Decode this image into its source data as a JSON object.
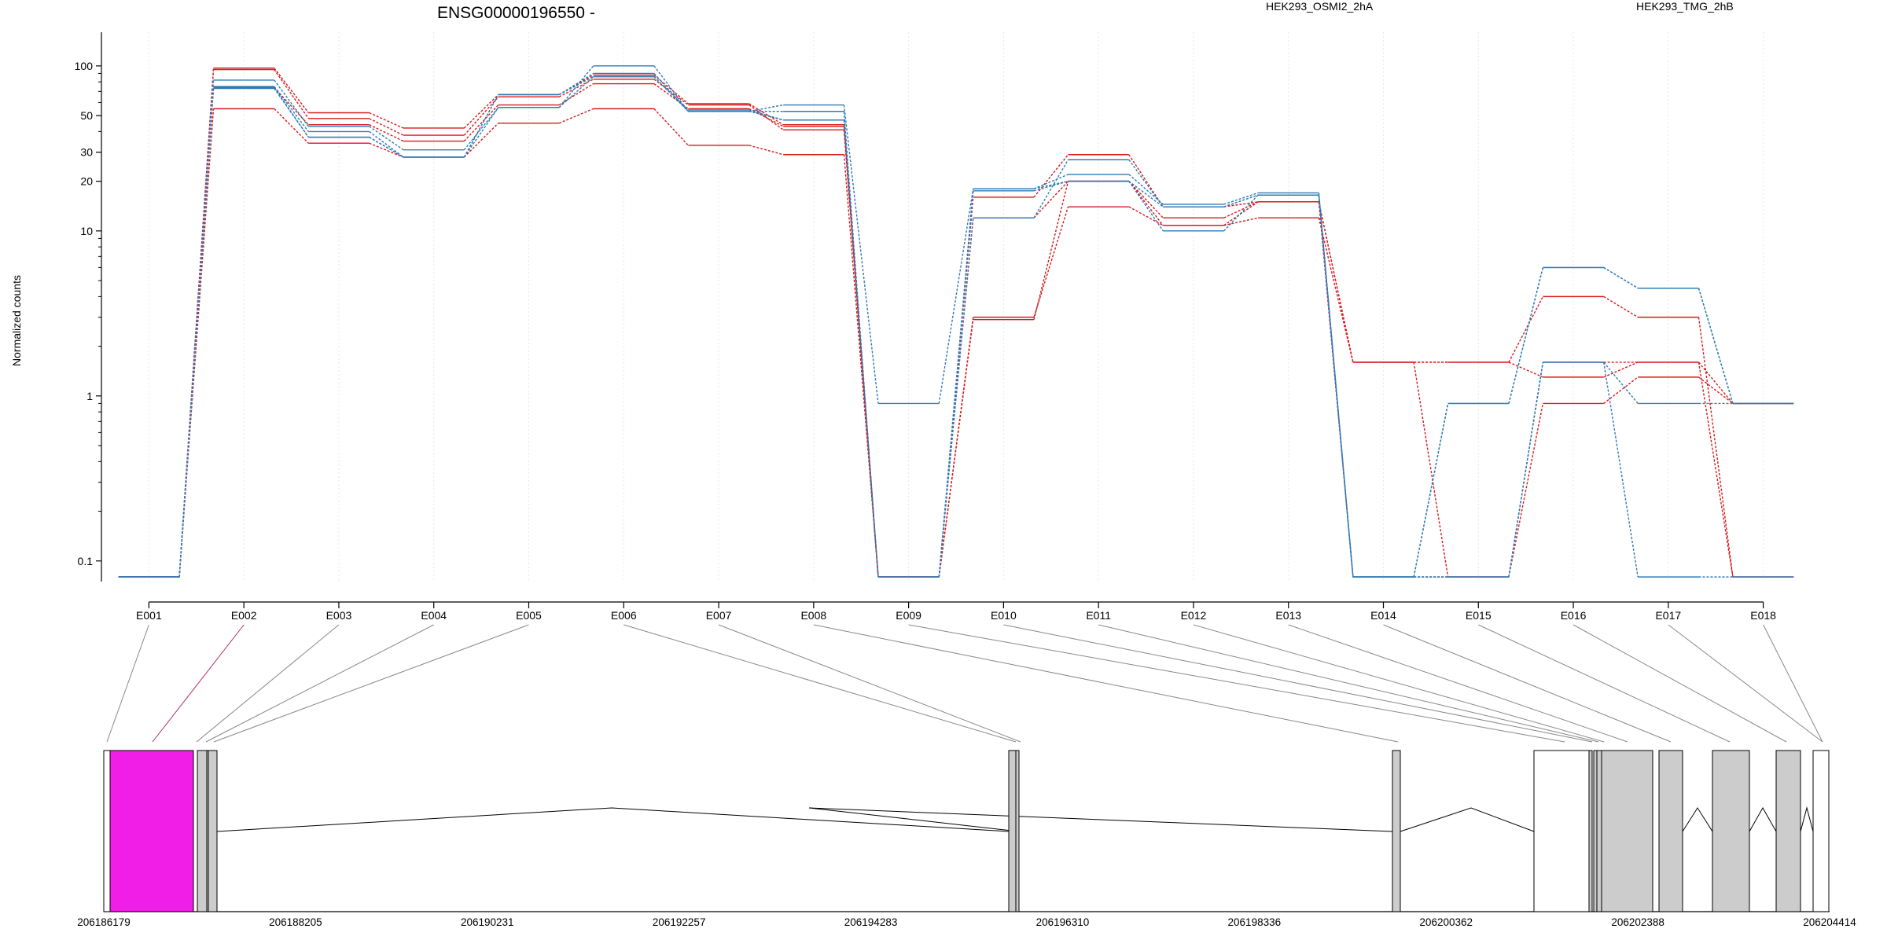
{
  "chart_data": {
    "type": "line",
    "title": "ENSG00000196550 -",
    "ylabel": "Normalized counts",
    "xlabel": "",
    "y_scale": "log",
    "ylim": [
      0.075,
      160
    ],
    "y_ticks": [
      "0.1",
      "1",
      "10",
      "20",
      "30",
      "50",
      "100"
    ],
    "y_tick_values": [
      0.1,
      1,
      10,
      20,
      30,
      50,
      100
    ],
    "grid": "vertical dotted lines at exon centers",
    "legend": "top, above plot area",
    "categories": [
      "E001",
      "E002",
      "E003",
      "E004",
      "E005",
      "E006",
      "E007",
      "E008",
      "E009",
      "E010",
      "E011",
      "E012",
      "E013",
      "E014",
      "E015",
      "E016",
      "E017",
      "E018"
    ],
    "groups": [
      {
        "name": "HEK293_OSMI2_2hA",
        "color": "#d7191c"
      },
      {
        "name": "HEK293_TMG_2hB",
        "color": "#2c7bb6"
      }
    ],
    "series": [
      {
        "group": 0,
        "values": [
          0.08,
          97,
          52,
          42,
          67,
          88,
          59,
          44,
          0.08,
          16,
          29,
          14,
          15,
          1.6,
          1.6,
          4.0,
          3.0,
          0.08
        ]
      },
      {
        "group": 0,
        "values": [
          0.08,
          95,
          48,
          38,
          65,
          83,
          58,
          41,
          0.08,
          12,
          20,
          12,
          15,
          1.6,
          1.6,
          1.3,
          1.6,
          0.08
        ]
      },
      {
        "group": 0,
        "values": [
          0.08,
          55,
          34,
          28,
          45,
          55,
          33,
          29,
          0.08,
          3.0,
          14,
          10.8,
          12,
          1.6,
          0.08,
          0.9,
          1.3,
          0.9
        ]
      },
      {
        "group": 0,
        "values": [
          0.08,
          74,
          44,
          35,
          58,
          78,
          55,
          43,
          0.08,
          2.9,
          20,
          10.8,
          15,
          0.08,
          0.08,
          1.6,
          1.6,
          0.9
        ]
      },
      {
        "group": 1,
        "values": [
          0.08,
          82,
          43,
          31,
          56,
          100,
          53,
          58,
          0.9,
          18,
          22,
          14.5,
          17,
          0.08,
          0.9,
          6.0,
          4.5,
          0.9
        ]
      },
      {
        "group": 1,
        "values": [
          0.08,
          75,
          40,
          28,
          67,
          90,
          53,
          53,
          0.08,
          12,
          27,
          14,
          16.5,
          0.08,
          0.9,
          6.0,
          4.5,
          0.9
        ]
      },
      {
        "group": 1,
        "values": [
          0.08,
          73,
          37,
          28,
          67,
          86,
          54,
          47,
          0.08,
          18,
          20,
          10,
          16.5,
          0.08,
          0.08,
          1.6,
          0.9,
          0.9
        ]
      },
      {
        "group": 1,
        "values": [
          0.08,
          74,
          37,
          28,
          56,
          86,
          53,
          47,
          0.08,
          17.5,
          20,
          14,
          16.5,
          0.08,
          0.08,
          1.6,
          0.08,
          0.08
        ]
      }
    ],
    "gene_model": {
      "coordinates": [
        "206186179",
        "206188205",
        "206190231",
        "206192257",
        "206194283",
        "206196310",
        "206198336",
        "206200362",
        "206202388",
        "206204414"
      ],
      "highlighted_exon": "E002",
      "highlight_color": "#f01ee6",
      "exon_fill": "#cccccc",
      "utr_fill": "#ffffff"
    }
  }
}
